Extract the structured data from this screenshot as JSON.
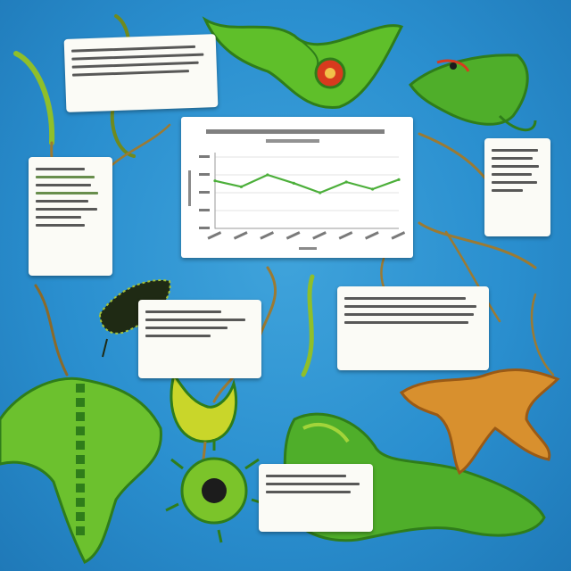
{
  "palette": {
    "background": "#2a8fcf",
    "creature_green": "#5fbf2a",
    "creature_dark": "#2f7d1a",
    "creature_orange": "#d8902e",
    "chart_line": "#4caf3a",
    "note_paper": "#fbfbf6"
  },
  "chart_data": {
    "type": "line",
    "title": "",
    "xlabel": "",
    "ylabel": "",
    "categories": [
      "",
      "",
      "",
      "",
      "",
      "",
      "",
      ""
    ],
    "series": [
      {
        "values": [
          8,
          7,
          9,
          7.6,
          6,
          7.8,
          6.6,
          8.2
        ]
      }
    ],
    "ylim": [
      0,
      12
    ],
    "grid": true,
    "legend": "none",
    "labels_legible": false
  },
  "notes": [
    {
      "id": "note-top-left",
      "lines": 4,
      "legible": false
    },
    {
      "id": "note-left-middle",
      "lines": 8,
      "legible": false
    },
    {
      "id": "note-right-upper",
      "lines": 6,
      "legible": false
    },
    {
      "id": "note-right-middle",
      "lines": 4,
      "legible": false
    },
    {
      "id": "note-center-left",
      "lines": 4,
      "legible": false
    },
    {
      "id": "note-bottom-center",
      "lines": 3,
      "legible": false
    }
  ],
  "creatures": [
    "green-lizard-creature",
    "leafy-dragon-creature",
    "black-beetle-creature",
    "green-scaled-serpent-creature",
    "green-flytrap-plant-creature",
    "spiky-green-urchin-creature",
    "coiled-green-snake-creature",
    "orange-root-creature"
  ]
}
